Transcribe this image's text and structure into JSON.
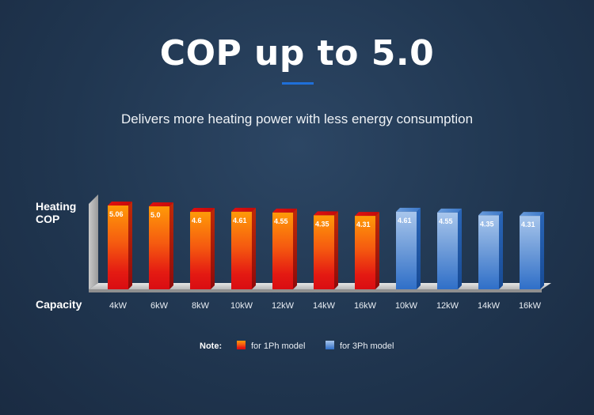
{
  "header": {
    "title": "COP up to 5.0",
    "subtitle": "Delivers more heating power with less energy consumption"
  },
  "chart_data": {
    "type": "bar",
    "title": "COP up to 5.0",
    "ylabel": "Heating COP",
    "xlabel": "Capacity",
    "ylim": [
      0,
      5.6
    ],
    "categories": [
      "4kW",
      "6kW",
      "8kW",
      "10kW",
      "12kW",
      "14kW",
      "16kW",
      "10kW",
      "12kW",
      "14kW",
      "16kW"
    ],
    "values": [
      5.06,
      5.0,
      4.6,
      4.61,
      4.55,
      4.35,
      4.31,
      4.61,
      4.55,
      4.35,
      4.31
    ],
    "value_labels": [
      "5.06",
      "5.0",
      "4.6",
      "4.61",
      "4.55",
      "4.35",
      "4.31",
      "4.61",
      "4.55",
      "4.35",
      "4.31"
    ],
    "series_of_bar": [
      "1ph",
      "1ph",
      "1ph",
      "1ph",
      "1ph",
      "1ph",
      "1ph",
      "3ph",
      "3ph",
      "3ph",
      "3ph"
    ],
    "series": [
      {
        "id": "1ph",
        "name": "for 1Ph model",
        "color": "#f07a10"
      },
      {
        "id": "3ph",
        "name": "for 3Ph model",
        "color": "#4a86d0"
      }
    ],
    "legend_title": "Note:",
    "legend_position": "bottom-center"
  }
}
